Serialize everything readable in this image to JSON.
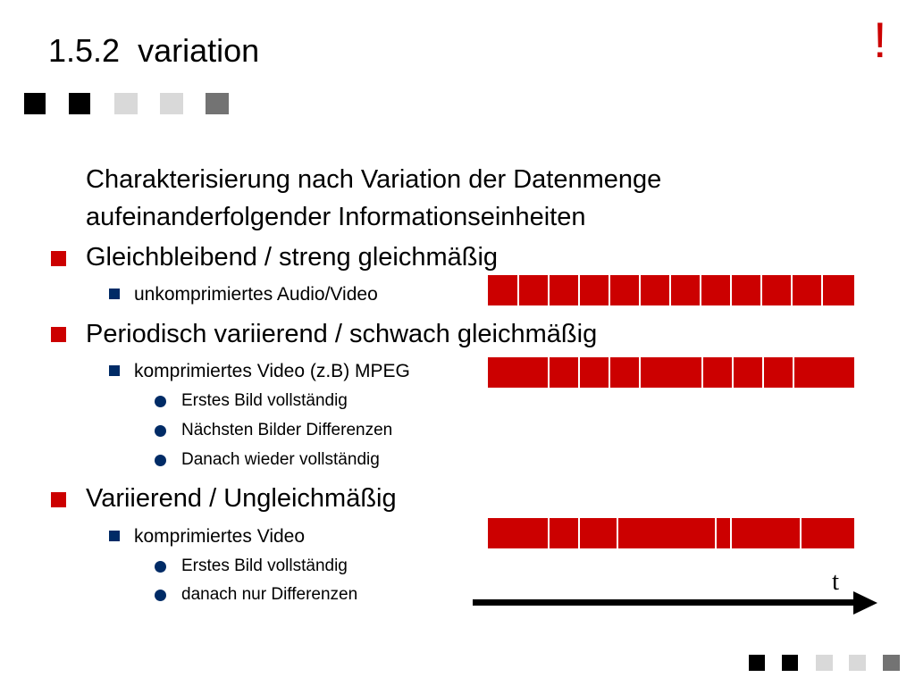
{
  "slide": {
    "title_number": "1.5.2",
    "title_text": "variation",
    "exclamation": "!"
  },
  "content": {
    "intro_line1": "Charakterisierung nach Variation der Datenmenge",
    "intro_line2": "aufeinanderfolgender Informationseinheiten",
    "sections": [
      {
        "heading": "Gleichbleibend / streng gleichmäßig",
        "sub": "unkomprimiertes Audio/Video",
        "details": []
      },
      {
        "heading": "Periodisch variierend / schwach gleichmäßig",
        "sub": "komprimiertes Video (z.B) MPEG",
        "details": [
          "Erstes Bild vollständig",
          "Nächsten Bilder Differenzen",
          "Danach wieder vollständig"
        ]
      },
      {
        "heading": "Variierend / Ungleichmäßig",
        "sub": "komprimiertes Video",
        "details": [
          "Erstes Bild vollständig",
          "danach nur Differenzen"
        ]
      }
    ]
  },
  "timeline": {
    "axis_label": "t"
  },
  "colors": {
    "accent": "#cc0000",
    "bullet_blue": "#002b66",
    "square_dark": "#000000",
    "square_light": "#d9d9d9",
    "square_grey": "#737373"
  },
  "icons": {
    "level1_bullet": "red-square-icon",
    "level2_bullet": "blue-square-icon",
    "level3_bullet": "blue-dot-icon",
    "axis_arrow": "arrow-right-icon"
  }
}
